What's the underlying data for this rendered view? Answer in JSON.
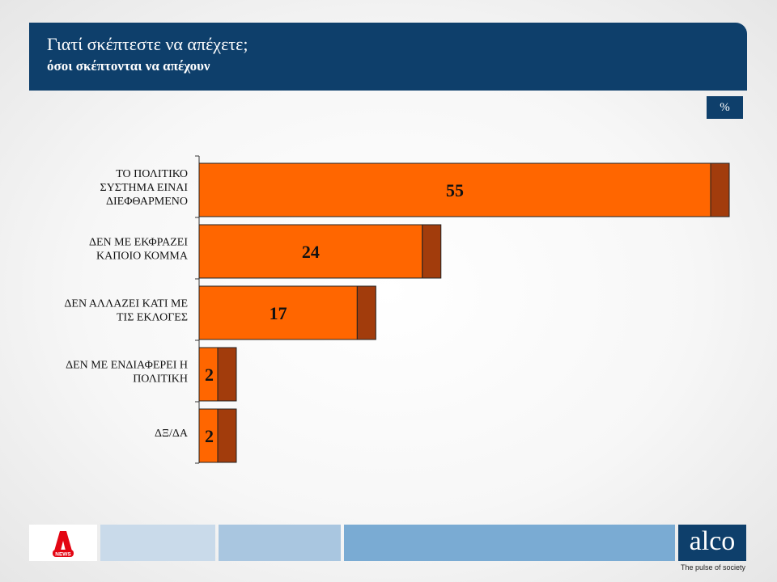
{
  "header": {
    "title": "Γιατί σκέπτεστε να απέχετε;",
    "subtitle": "όσοι σκέπτονται να απέχουν"
  },
  "unit_badge": "%",
  "colors": {
    "header_bg": "#0e3f6b",
    "bar": "#ff6600",
    "bar_shadow": "#a23c0c",
    "footer_light": "#c9daea",
    "footer_mid": "#a9c6e0",
    "footer_dark": "#7aabd3"
  },
  "chart_data": {
    "type": "bar",
    "orientation": "horizontal",
    "categories": [
      [
        "ΤΟ ΠΟΛΙΤΙΚΟ",
        "ΣΥΣΤΗΜΑ ΕΙΝΑΙ",
        "ΔΙΕΦΘΑΡΜΕΝΟ"
      ],
      [
        "ΔΕΝ ΜΕ ΕΚΦΡΑΖΕΙ",
        "ΚΑΠΟΙΟ ΚΟΜΜΑ"
      ],
      [
        "ΔΕΝ ΑΛΛΑΖΕΙ ΚΑΤΙ ΜΕ",
        "ΤΙΣ ΕΚΛΟΓΕΣ"
      ],
      [
        "ΔΕΝ ΜΕ ΕΝΔΙΑΦΕΡΕΙ Η",
        "ΠΟΛΙΤΙΚΗ"
      ],
      [
        "ΔΞ/ΔΑ"
      ]
    ],
    "values": [
      55,
      24,
      17,
      2,
      2
    ],
    "data_labels": [
      "55",
      "24",
      "17",
      "2",
      "2"
    ],
    "xlim": [
      0,
      55
    ],
    "grid": false,
    "legend": "none"
  },
  "footer": {
    "logo_a_text": "NEWS",
    "brand": "alco",
    "tagline": "The pulse of society"
  }
}
